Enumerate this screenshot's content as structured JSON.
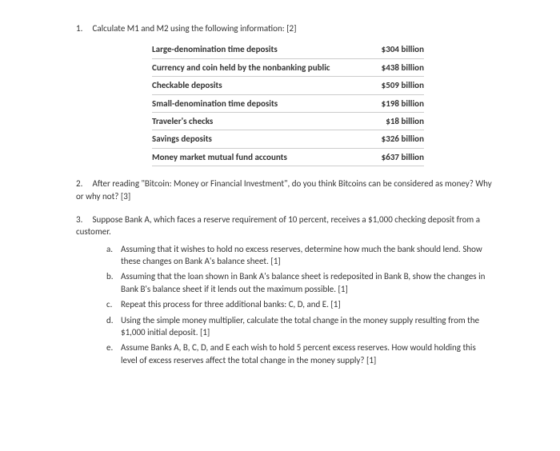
{
  "q1": {
    "number": "1.",
    "text": "Calculate M1 and M2 using the following information: [2]",
    "rows": [
      {
        "label": "Large-denomination time deposits",
        "value": "$304 billion"
      },
      {
        "label": "Currency and coin held by the nonbanking public",
        "value": "$438 billion"
      },
      {
        "label": "Checkable deposits",
        "value": "$509 billion"
      },
      {
        "label": "Small-denomination time deposits",
        "value": "$198 billion"
      },
      {
        "label": "Traveler's checks",
        "value": "$18 billion"
      },
      {
        "label": "Savings deposits",
        "value": "$326 billion"
      },
      {
        "label": "Money market mutual fund accounts",
        "value": "$637 billion"
      }
    ]
  },
  "q2": {
    "number": "2.",
    "text": "After reading \"Bitcoin: Money or Financial Investment\", do you think Bitcoins can be considered as money? Why or why not? [3]"
  },
  "q3": {
    "number": "3.",
    "text": "Suppose Bank A, which faces a reserve requirement of 10 percent, receives a $1,000 checking deposit from a customer.",
    "subs": [
      {
        "letter": "a.",
        "text": "Assuming that it wishes to hold no excess reserves, determine how much the bank should lend. Show these changes on Bank A's balance sheet. [1]"
      },
      {
        "letter": "b.",
        "text": "Assuming that the loan shown in Bank A's balance sheet is redeposited in Bank B, show the changes in Bank B's balance sheet if it lends out the maximum possible. [1]"
      },
      {
        "letter": "c.",
        "text": "Repeat this process for three additional banks: C, D, and E. [1]"
      },
      {
        "letter": "d.",
        "text": "Using the simple money multiplier, calculate the total change in the money supply resulting from the $1,000 initial deposit. [1]"
      },
      {
        "letter": "e.",
        "text": "Assume Banks A, B, C, D, and E each wish to hold 5 percent excess reserves. How would holding this level of excess reserves affect the total change in the money supply? [1]"
      }
    ]
  }
}
